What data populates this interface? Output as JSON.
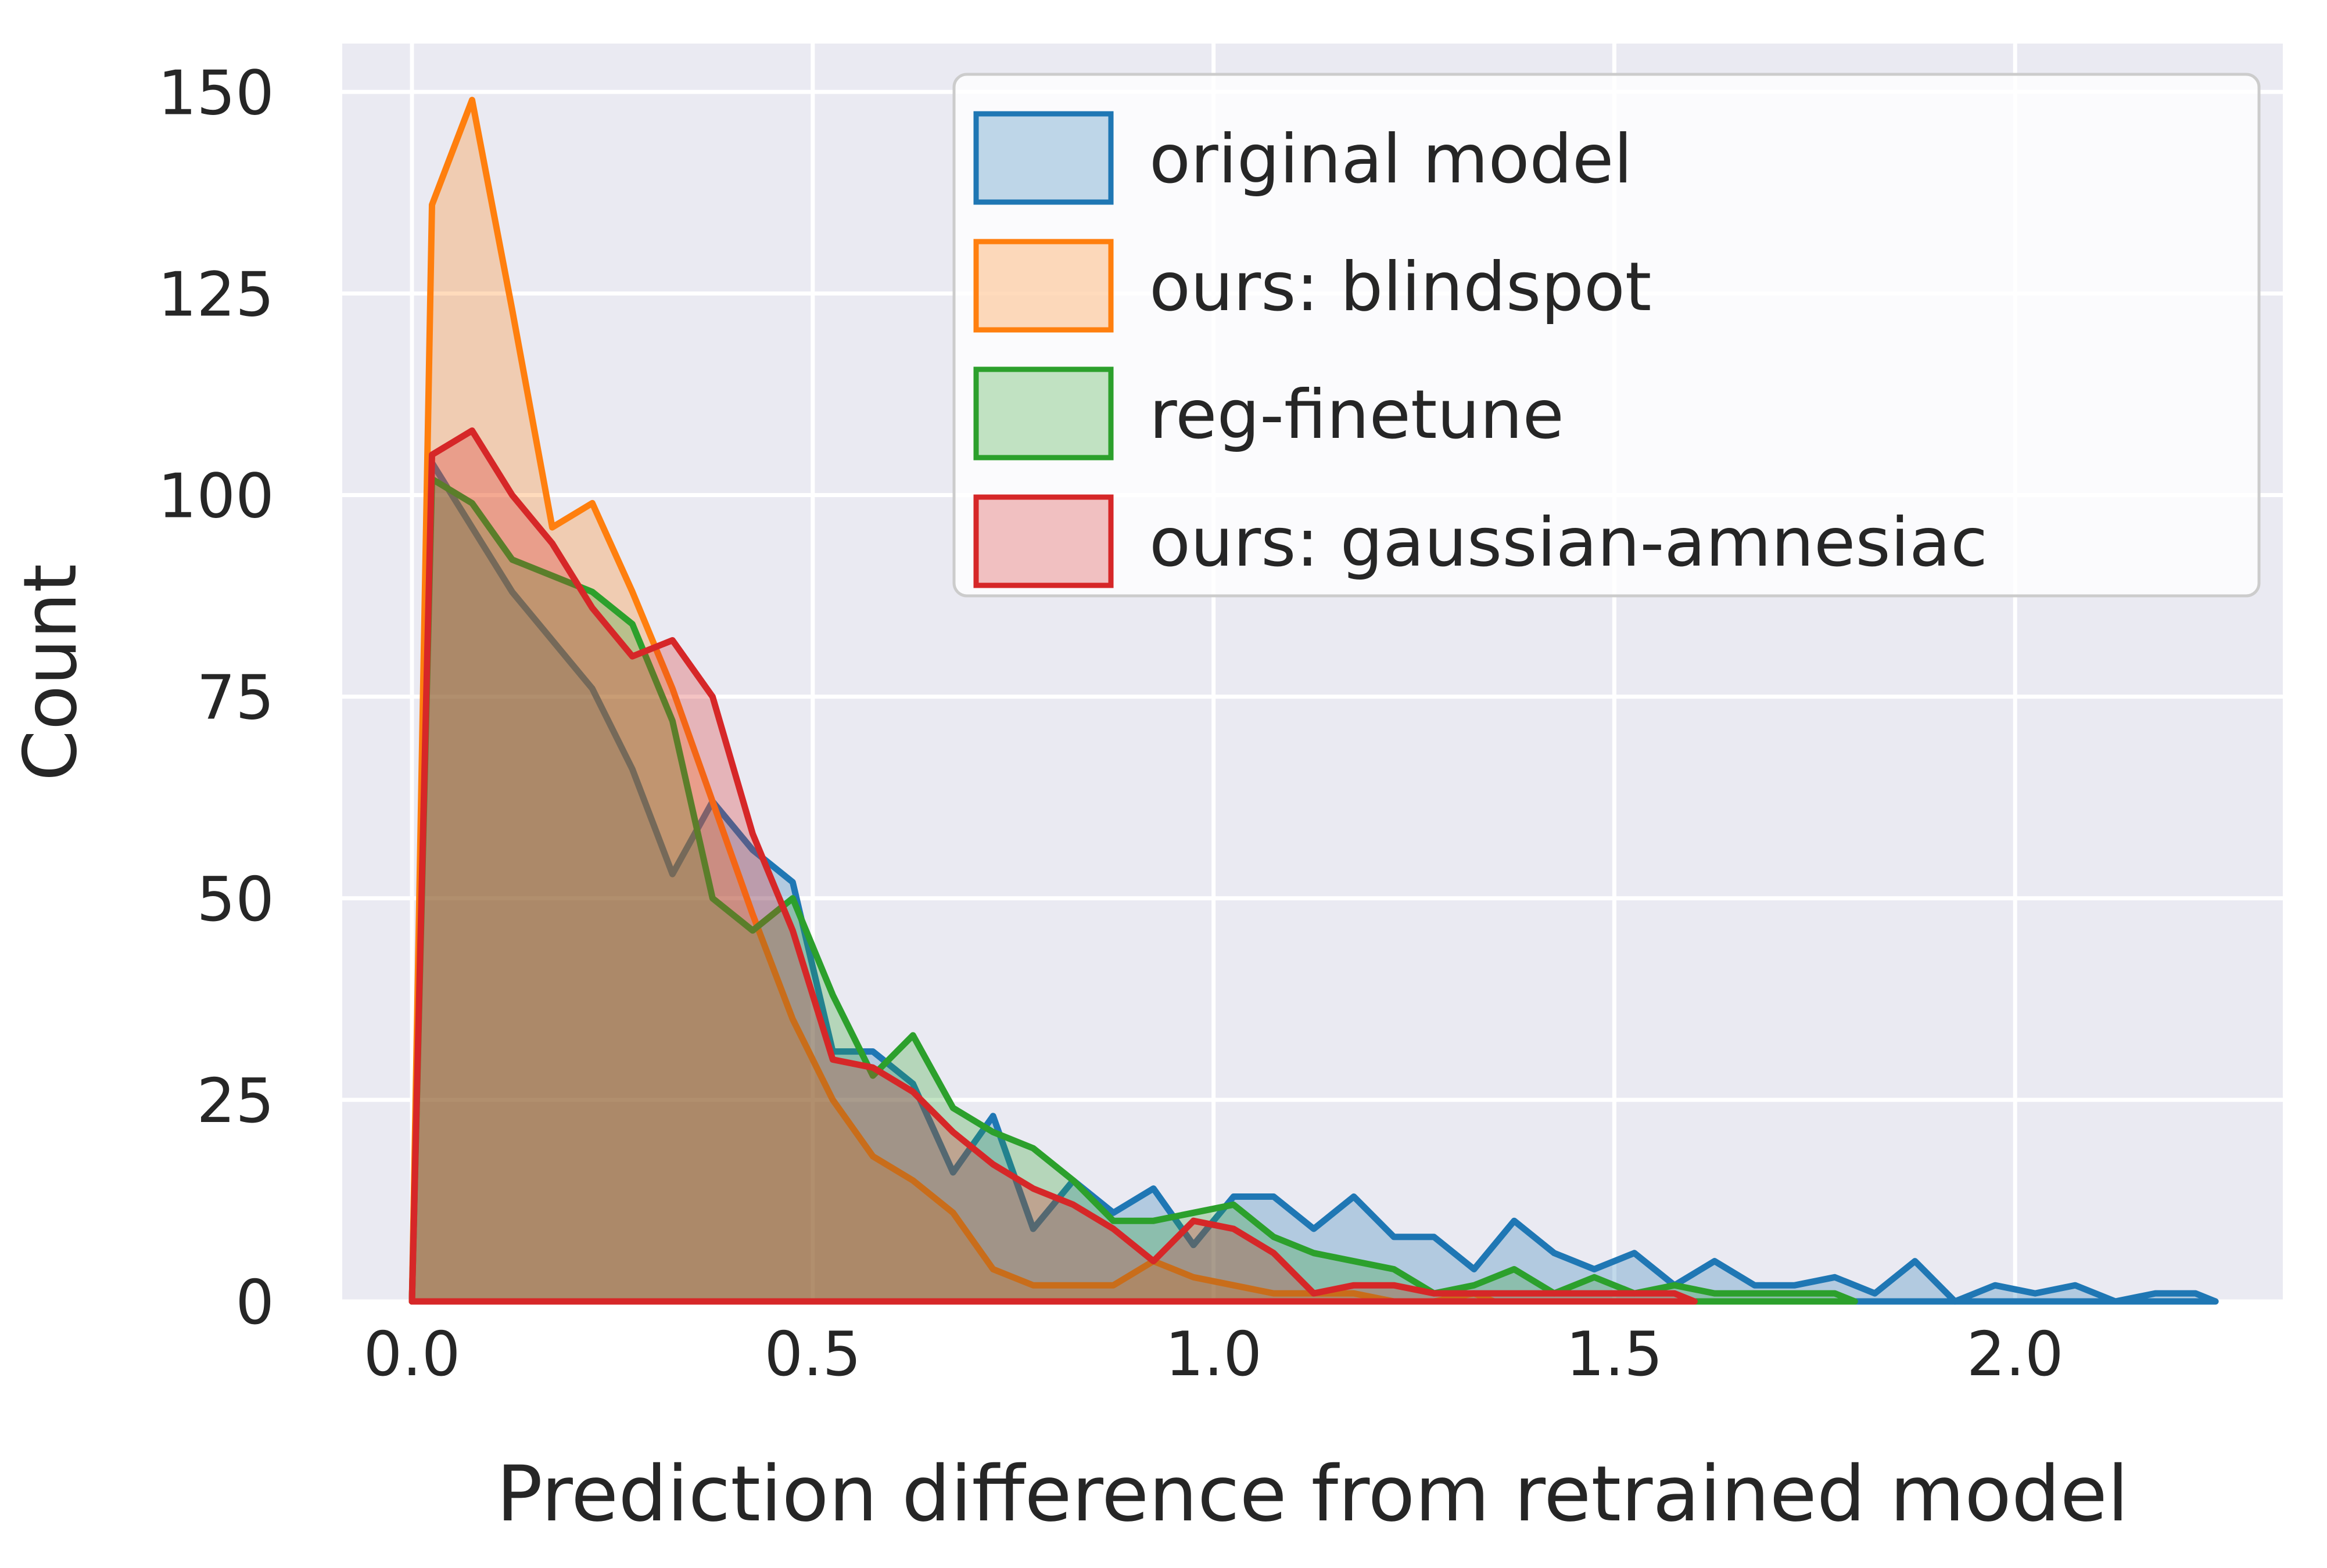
{
  "chart_data": {
    "type": "area",
    "subtype": "histogram-poly-overlaid",
    "title": "",
    "xlabel": "Prediction difference from retrained model",
    "ylabel": "Count",
    "x_ticks": [
      0.0,
      0.5,
      1.0,
      1.5,
      2.0
    ],
    "x_tick_labels": [
      "0.0",
      "0.5",
      "1.0",
      "1.5",
      "2.0"
    ],
    "y_ticks": [
      0,
      25,
      50,
      75,
      100,
      125,
      150
    ],
    "y_tick_labels": [
      "0",
      "25",
      "50",
      "75",
      "100",
      "125",
      "150"
    ],
    "xlim": [
      -0.087,
      2.334
    ],
    "ylim": [
      0,
      156
    ],
    "grid": true,
    "background_color": "#eaeaf2",
    "gridline_color": "#ffffff",
    "text_color": "#262626",
    "legend_position": "upper right",
    "bin_width": 0.05,
    "first_bin_center": 0.025,
    "fill_alpha": 0.28,
    "line_width": 11,
    "series": [
      {
        "name": "original model",
        "color": "#1f77b4",
        "values": [
          104,
          96,
          88,
          82,
          76,
          66,
          53,
          62,
          56,
          52,
          31,
          31,
          27,
          16,
          23,
          9,
          15,
          11,
          14,
          7,
          13,
          13,
          9,
          13,
          8,
          8,
          4,
          10,
          6,
          4,
          6,
          2,
          5,
          2,
          2,
          3,
          1,
          5,
          0,
          2,
          1,
          2,
          0,
          1,
          1
        ]
      },
      {
        "name": "ours: blindspot",
        "color": "#ff7f0e",
        "values": [
          136,
          149,
          123,
          96,
          99,
          88,
          76,
          62,
          48,
          35,
          25,
          18,
          15,
          11,
          4,
          2,
          2,
          2,
          5,
          3,
          2,
          1,
          1,
          1,
          0,
          0,
          1
        ]
      },
      {
        "name": "reg-finetune",
        "color": "#2ca02c",
        "values": [
          102,
          99,
          92,
          90,
          88,
          84,
          72,
          50,
          46,
          50,
          38,
          28,
          33,
          24,
          21,
          19,
          15,
          10,
          10,
          11,
          12,
          8,
          6,
          5,
          4,
          1,
          2,
          4,
          1,
          3,
          1,
          2,
          1,
          1,
          1,
          1
        ]
      },
      {
        "name": "ours: gaussian-amnesiac",
        "color": "#d62728",
        "values": [
          105,
          108,
          100,
          94,
          86,
          80,
          82,
          75,
          58,
          46,
          30,
          29,
          26,
          21,
          17,
          14,
          12,
          9,
          5,
          10,
          9,
          6,
          1,
          2,
          2,
          1,
          1,
          1,
          1,
          1,
          1,
          1
        ]
      }
    ]
  }
}
